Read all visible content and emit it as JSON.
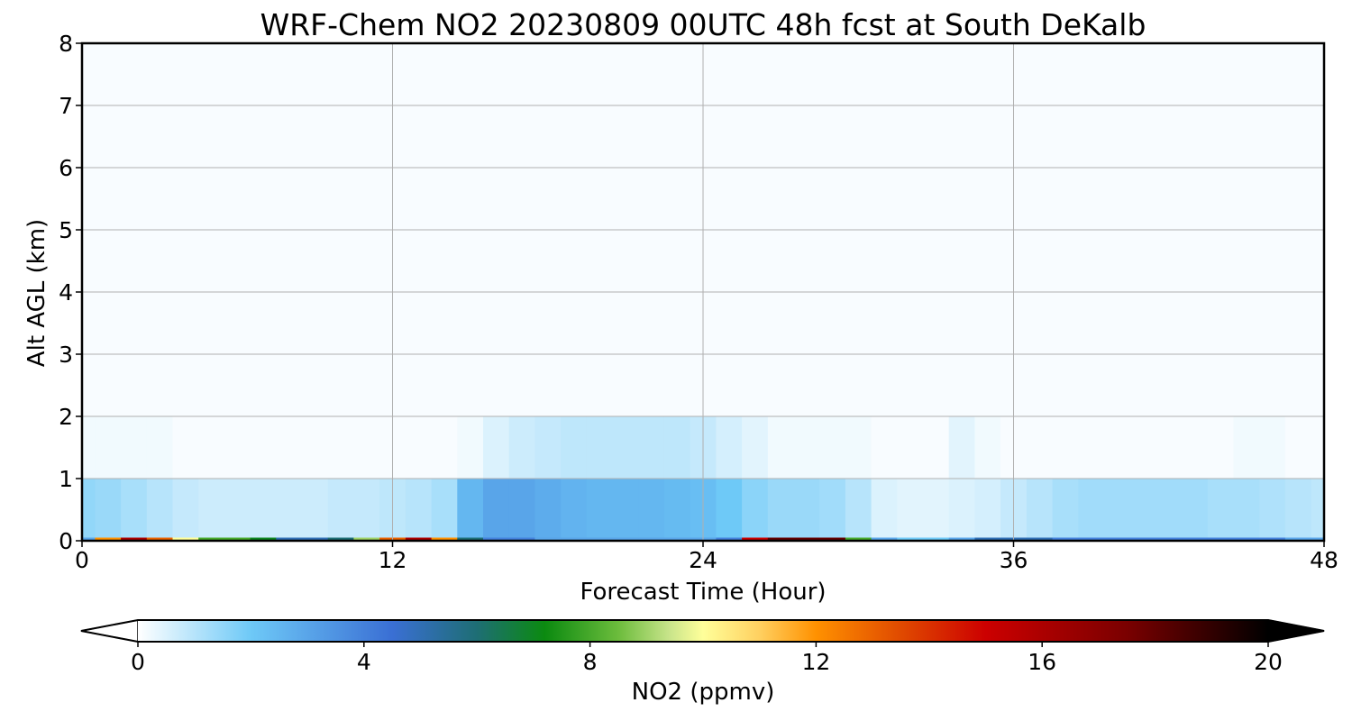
{
  "chart_data": {
    "type": "heatmap",
    "title": "WRF-Chem NO2  20230809 00UTC 48h fcst at South DeKalb",
    "xlabel": "Forecast Time (Hour)",
    "ylabel": "Alt AGL (km)",
    "xlim": [
      0,
      48
    ],
    "ylim": [
      0,
      8
    ],
    "x_ticks": [
      0,
      12,
      24,
      36,
      48
    ],
    "y_ticks": [
      0,
      1,
      2,
      3,
      4,
      5,
      6,
      7,
      8
    ],
    "grid": true,
    "colorbar": {
      "label": "NO2  (ppmv)",
      "ticks": [
        0,
        4,
        8,
        12,
        16,
        20
      ],
      "range": [
        0,
        20
      ],
      "extend": "both",
      "orientation": "horizontal",
      "position": "bottom",
      "color_stops": [
        {
          "v": 0,
          "c": "#ffffff"
        },
        {
          "v": 2,
          "c": "#6ec9f7"
        },
        {
          "v": 4.5,
          "c": "#3a6fd4"
        },
        {
          "v": 6,
          "c": "#1e6e74"
        },
        {
          "v": 7.2,
          "c": "#0b8a10"
        },
        {
          "v": 8.5,
          "c": "#6cbc3c"
        },
        {
          "v": 9.4,
          "c": "#c8e48a"
        },
        {
          "v": 10,
          "c": "#ffff9a"
        },
        {
          "v": 11,
          "c": "#ffd060"
        },
        {
          "v": 12,
          "c": "#ff9100"
        },
        {
          "v": 13.5,
          "c": "#e04a00"
        },
        {
          "v": 15,
          "c": "#cc0000"
        },
        {
          "v": 17.5,
          "c": "#7a0000"
        },
        {
          "v": 20,
          "c": "#000000"
        }
      ]
    },
    "series": [
      {
        "name": "surface_no2_ppmv",
        "x": [
          0,
          1,
          2,
          3,
          4,
          5,
          6,
          7,
          8,
          9,
          10,
          11,
          12,
          13,
          14,
          15,
          16,
          17,
          18,
          19,
          20,
          21,
          22,
          23,
          24,
          25,
          26,
          27,
          28,
          29,
          30,
          31,
          32,
          33,
          34,
          35,
          36,
          37,
          38,
          39,
          40,
          41,
          42,
          43,
          44,
          45,
          46,
          47,
          48
        ],
        "values": [
          3,
          12,
          16,
          13,
          10,
          8,
          8,
          7,
          5,
          5,
          6,
          9,
          13,
          16,
          12,
          6,
          4,
          4,
          3,
          3,
          3,
          3,
          3,
          3,
          3,
          4,
          15,
          18,
          18,
          18,
          8,
          3,
          2,
          2,
          3,
          5,
          5,
          5,
          4,
          4,
          4,
          4,
          4,
          4,
          4,
          4,
          4,
          3,
          3
        ]
      },
      {
        "name": "layer_0_1km_no2_ppmv",
        "x": [
          0,
          1,
          2,
          3,
          4,
          5,
          6,
          7,
          8,
          9,
          10,
          11,
          12,
          13,
          14,
          15,
          16,
          17,
          18,
          19,
          20,
          21,
          22,
          23,
          24,
          25,
          26,
          27,
          28,
          29,
          30,
          31,
          32,
          33,
          34,
          35,
          36,
          37,
          38,
          39,
          40,
          41,
          42,
          43,
          44,
          45,
          46,
          47,
          48
        ],
        "values": [
          1.5,
          1.4,
          1.2,
          1.0,
          0.8,
          0.7,
          0.7,
          0.7,
          0.7,
          0.7,
          0.8,
          0.8,
          0.9,
          1.0,
          1.2,
          2.5,
          3.0,
          3.0,
          2.8,
          2.6,
          2.5,
          2.5,
          2.5,
          2.4,
          2.3,
          2.0,
          1.6,
          1.4,
          1.4,
          1.3,
          1.0,
          0.5,
          0.4,
          0.4,
          0.5,
          0.6,
          0.8,
          1.0,
          1.2,
          1.3,
          1.3,
          1.3,
          1.3,
          1.3,
          1.2,
          1.2,
          1.1,
          1.0,
          0.9
        ]
      },
      {
        "name": "layer_1_2km_no2_ppmv",
        "x": [
          0,
          1,
          2,
          3,
          4,
          5,
          6,
          7,
          8,
          9,
          10,
          11,
          12,
          13,
          14,
          15,
          16,
          17,
          18,
          19,
          20,
          21,
          22,
          23,
          24,
          25,
          26,
          27,
          28,
          29,
          30,
          31,
          32,
          33,
          34,
          35,
          36,
          37,
          38,
          39,
          40,
          41,
          42,
          43,
          44,
          45,
          46,
          47,
          48
        ],
        "values": [
          0.2,
          0.2,
          0.2,
          0.2,
          0.1,
          0.1,
          0.1,
          0.1,
          0.1,
          0.1,
          0.1,
          0.1,
          0.1,
          0.1,
          0.1,
          0.2,
          0.5,
          0.7,
          0.8,
          0.9,
          0.9,
          0.9,
          0.9,
          0.9,
          0.8,
          0.6,
          0.4,
          0.2,
          0.2,
          0.2,
          0.2,
          0.1,
          0.1,
          0.1,
          0.4,
          0.2,
          0.1,
          0.1,
          0.1,
          0.1,
          0.1,
          0.1,
          0.1,
          0.1,
          0.1,
          0.2,
          0.2,
          0.1,
          0.1
        ]
      },
      {
        "name": "layer_2_8km_no2_ppmv",
        "x": [
          0,
          1,
          2,
          3,
          4,
          5,
          6,
          7,
          8,
          9,
          10,
          11,
          12,
          13,
          14,
          15,
          16,
          17,
          18,
          19,
          20,
          21,
          22,
          23,
          24,
          25,
          26,
          27,
          28,
          29,
          30,
          31,
          32,
          33,
          34,
          35,
          36,
          37,
          38,
          39,
          40,
          41,
          42,
          43,
          44,
          45,
          46,
          47,
          48
        ],
        "values": [
          0.1,
          0.1,
          0.1,
          0.1,
          0.1,
          0.1,
          0.1,
          0.1,
          0.1,
          0.1,
          0.1,
          0.1,
          0.1,
          0.1,
          0.1,
          0.1,
          0.1,
          0.1,
          0.1,
          0.1,
          0.1,
          0.1,
          0.1,
          0.1,
          0.1,
          0.1,
          0.1,
          0.1,
          0.1,
          0.1,
          0.1,
          0.1,
          0.1,
          0.1,
          0.1,
          0.1,
          0.1,
          0.1,
          0.1,
          0.1,
          0.1,
          0.1,
          0.1,
          0.1,
          0.1,
          0.1,
          0.1,
          0.1,
          0.1
        ]
      }
    ]
  }
}
